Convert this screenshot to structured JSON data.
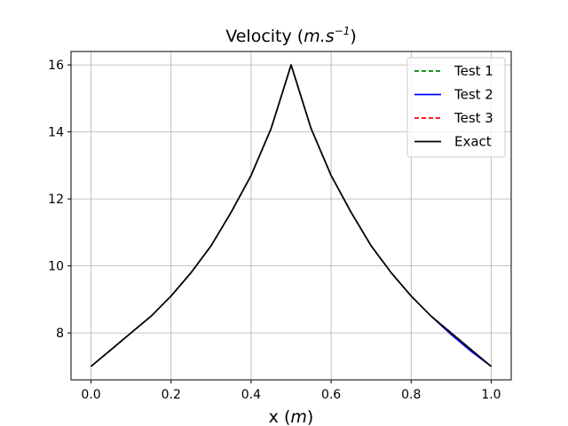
{
  "chart_data": {
    "type": "line",
    "title": "Velocity (m.s⁻¹)",
    "title_parts": {
      "prefix": "Velocity (",
      "unit_main": "m.s",
      "unit_sup": "−1",
      "suffix": ")"
    },
    "xlabel": "x (m)",
    "xlabel_parts": {
      "prefix": "x (",
      "unit": "m",
      "suffix": ")"
    },
    "ylabel": "",
    "xlim": [
      -0.05,
      1.05
    ],
    "ylim": [
      6.6,
      16.4
    ],
    "xticks": [
      0.0,
      0.2,
      0.4,
      0.6,
      0.8,
      1.0
    ],
    "xtick_labels": [
      "0.0",
      "0.2",
      "0.4",
      "0.6",
      "0.8",
      "1.0"
    ],
    "yticks": [
      8,
      10,
      12,
      14,
      16
    ],
    "ytick_labels": [
      "8",
      "10",
      "12",
      "14",
      "16"
    ],
    "grid": true,
    "legend_position": "top-right",
    "x": [
      0.0,
      0.05,
      0.1,
      0.15,
      0.2,
      0.25,
      0.3,
      0.35,
      0.4,
      0.45,
      0.5,
      0.55,
      0.6,
      0.65,
      0.7,
      0.75,
      0.8,
      0.85,
      0.9,
      0.95,
      1.0
    ],
    "series": [
      {
        "name": "Test 1",
        "color": "#008000",
        "dash": "dashed",
        "values": [
          7.0,
          7.5,
          8.0,
          8.5,
          9.1,
          9.8,
          10.6,
          11.6,
          12.7,
          14.1,
          16.0,
          14.1,
          12.7,
          11.6,
          10.6,
          9.8,
          9.1,
          8.5,
          8.0,
          7.5,
          7.0
        ]
      },
      {
        "name": "Test 2",
        "color": "#0000ff",
        "dash": "solid",
        "values": [
          7.0,
          7.5,
          8.0,
          8.5,
          9.1,
          9.8,
          10.6,
          11.6,
          12.7,
          14.1,
          16.0,
          14.1,
          12.7,
          11.6,
          10.6,
          9.8,
          9.1,
          8.5,
          7.95,
          7.45,
          7.0
        ]
      },
      {
        "name": "Test 3",
        "color": "#ff0000",
        "dash": "dashed",
        "values": [
          7.0,
          7.5,
          8.0,
          8.5,
          9.1,
          9.8,
          10.6,
          11.6,
          12.7,
          14.1,
          16.0,
          14.1,
          12.7,
          11.6,
          10.6,
          9.8,
          9.1,
          8.5,
          8.0,
          7.5,
          7.0
        ]
      },
      {
        "name": "Exact",
        "color": "#000000",
        "dash": "solid",
        "values": [
          7.0,
          7.5,
          8.0,
          8.5,
          9.1,
          9.8,
          10.6,
          11.6,
          12.7,
          14.1,
          16.0,
          14.1,
          12.7,
          11.6,
          10.6,
          9.8,
          9.1,
          8.5,
          8.0,
          7.5,
          7.0
        ]
      }
    ]
  }
}
